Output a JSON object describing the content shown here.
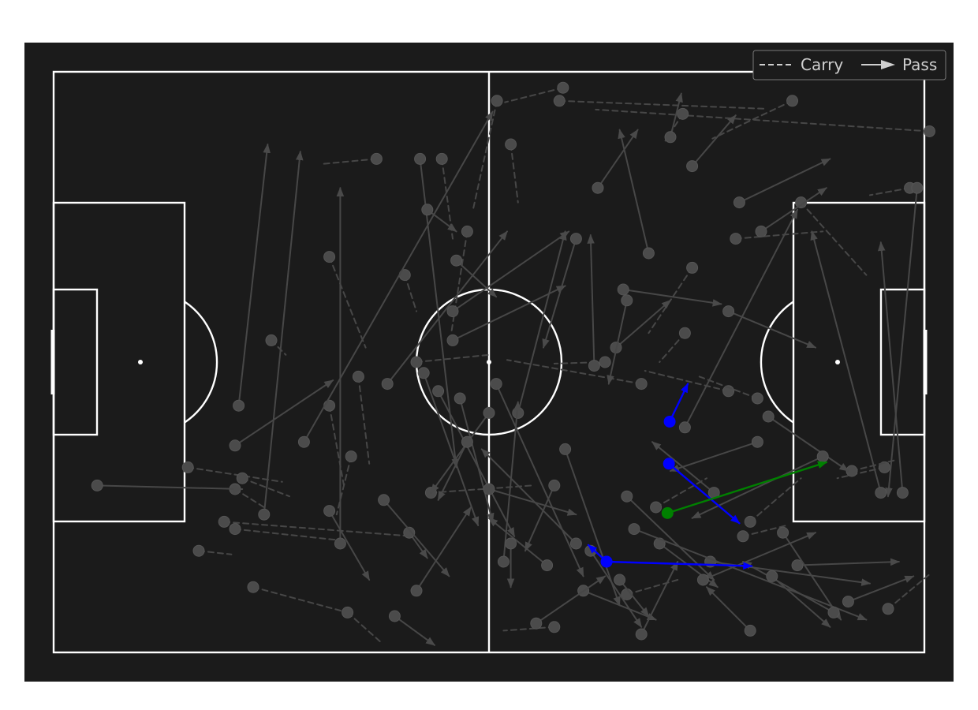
{
  "colors": {
    "background": "#1b1b1b",
    "lines": "#ffffff",
    "faded": "#9a9a9a",
    "highlight_pass": "#0000ff",
    "highlight_carry": "#008000",
    "legend_text": "#cfcfcf"
  },
  "legend": {
    "carry_label": "Carry",
    "pass_label": "Pass"
  },
  "chart_data": {
    "type": "scatter",
    "title": "",
    "xlabel": "",
    "ylabel": "",
    "pitch": {
      "length": 120,
      "width": 80
    },
    "xlim": [
      0,
      120
    ],
    "ylim": [
      0,
      80
    ],
    "grid": false,
    "legend_position": "top-right",
    "highlighted_events": [
      {
        "type": "pass",
        "x": 84.9,
        "y": 31.8,
        "end_x": 87.4,
        "end_y": 37.0
      },
      {
        "type": "pass",
        "x": 84.8,
        "y": 26.0,
        "end_x": 94.5,
        "end_y": 17.8
      },
      {
        "type": "pass",
        "x": 76.2,
        "y": 12.5,
        "end_x": 96.2,
        "end_y": 11.9
      },
      {
        "type": "pass",
        "x": 76.2,
        "y": 12.5,
        "end_x": 73.7,
        "end_y": 14.8
      },
      {
        "type": "carry",
        "x": 84.6,
        "y": 19.2,
        "end_x": 106.5,
        "end_y": 26.2
      }
    ],
    "background_events": [
      {
        "type": "carry",
        "x": 70.2,
        "y": 77.8,
        "end_x": 62.2,
        "end_y": 75.8
      },
      {
        "type": "carry",
        "x": 69.7,
        "y": 76.0,
        "end_x": 98.2,
        "end_y": 74.9
      },
      {
        "type": "carry",
        "x": 120.7,
        "y": 71.8,
        "end_x": 74.7,
        "end_y": 74.8
      },
      {
        "type": "carry",
        "x": 101.8,
        "y": 76.0,
        "end_x": 90.8,
        "end_y": 70.8
      },
      {
        "type": "carry",
        "x": 86.7,
        "y": 74.2,
        "end_x": 84.3,
        "end_y": 70.5
      },
      {
        "type": "carry",
        "x": 61.1,
        "y": 76.0,
        "end_x": 57.8,
        "end_y": 61.0
      },
      {
        "type": "carry",
        "x": 44.5,
        "y": 68.0,
        "end_x": 37.0,
        "end_y": 67.3
      },
      {
        "type": "carry",
        "x": 94.0,
        "y": 57.0,
        "end_x": 106.0,
        "end_y": 58.0
      },
      {
        "type": "carry",
        "x": 103.0,
        "y": 62.0,
        "end_x": 112.0,
        "end_y": 52.0
      },
      {
        "type": "carry",
        "x": 118.0,
        "y": 64.0,
        "end_x": 112.5,
        "end_y": 63.0
      },
      {
        "type": "carry",
        "x": 88.0,
        "y": 53.0,
        "end_x": 82.0,
        "end_y": 44.0
      },
      {
        "type": "carry",
        "x": 57.0,
        "y": 58.0,
        "end_x": 54.8,
        "end_y": 44.0
      },
      {
        "type": "carry",
        "x": 38.0,
        "y": 54.5,
        "end_x": 43.0,
        "end_y": 42.0
      },
      {
        "type": "carry",
        "x": 48.4,
        "y": 52.0,
        "end_x": 50.0,
        "end_y": 47.0
      },
      {
        "type": "carry",
        "x": 30.0,
        "y": 43.0,
        "end_x": 32.0,
        "end_y": 41.0
      },
      {
        "type": "carry",
        "x": 76.0,
        "y": 40.0,
        "end_x": 69.0,
        "end_y": 39.8
      },
      {
        "type": "carry",
        "x": 50.0,
        "y": 40.0,
        "end_x": 60.0,
        "end_y": 41.0
      },
      {
        "type": "carry",
        "x": 87.0,
        "y": 44.0,
        "end_x": 83.5,
        "end_y": 40.0
      },
      {
        "type": "carry",
        "x": 81.0,
        "y": 37.0,
        "end_x": 62.5,
        "end_y": 40.3
      },
      {
        "type": "carry",
        "x": 93.0,
        "y": 36.0,
        "end_x": 81.5,
        "end_y": 38.8
      },
      {
        "type": "carry",
        "x": 97.0,
        "y": 35.0,
        "end_x": 89.0,
        "end_y": 38.0
      },
      {
        "type": "carry",
        "x": 42.0,
        "y": 38.0,
        "end_x": 43.5,
        "end_y": 26.0
      },
      {
        "type": "carry",
        "x": 38.0,
        "y": 34.0,
        "end_x": 40.0,
        "end_y": 23.0
      },
      {
        "type": "carry",
        "x": 41.0,
        "y": 27.0,
        "end_x": 39.0,
        "end_y": 19.0
      },
      {
        "type": "carry",
        "x": 18.5,
        "y": 25.5,
        "end_x": 31.5,
        "end_y": 23.5
      },
      {
        "type": "carry",
        "x": 26.0,
        "y": 24.0,
        "end_x": 32.5,
        "end_y": 21.5
      },
      {
        "type": "carry",
        "x": 25.0,
        "y": 22.5,
        "end_x": 29.0,
        "end_y": 20.0
      },
      {
        "type": "carry",
        "x": 23.5,
        "y": 18.0,
        "end_x": 49.5,
        "end_y": 16.0
      },
      {
        "type": "carry",
        "x": 25.0,
        "y": 17.0,
        "end_x": 39.0,
        "end_y": 15.5
      },
      {
        "type": "carry",
        "x": 20.0,
        "y": 14.0,
        "end_x": 24.5,
        "end_y": 13.5
      },
      {
        "type": "carry",
        "x": 27.5,
        "y": 9.0,
        "end_x": 40.5,
        "end_y": 5.5
      },
      {
        "type": "carry",
        "x": 40.5,
        "y": 5.5,
        "end_x": 45.0,
        "end_y": 1.5
      },
      {
        "type": "carry",
        "x": 69.0,
        "y": 3.5,
        "end_x": 62.0,
        "end_y": 3.0
      },
      {
        "type": "carry",
        "x": 79.0,
        "y": 8.0,
        "end_x": 86.0,
        "end_y": 10.0
      },
      {
        "type": "carry",
        "x": 83.0,
        "y": 20.0,
        "end_x": 90.0,
        "end_y": 24.0
      },
      {
        "type": "carry",
        "x": 52.0,
        "y": 22.0,
        "end_x": 66.0,
        "end_y": 23.0
      },
      {
        "type": "carry",
        "x": 96.0,
        "y": 18.0,
        "end_x": 103.0,
        "end_y": 24.0
      },
      {
        "type": "carry",
        "x": 114.5,
        "y": 25.5,
        "end_x": 108.0,
        "end_y": 24.0
      },
      {
        "type": "carry",
        "x": 110.0,
        "y": 25.0,
        "end_x": 116.0,
        "end_y": 26.5
      },
      {
        "type": "carry",
        "x": 115.0,
        "y": 6.0,
        "end_x": 121.0,
        "end_y": 11.0
      },
      {
        "type": "carry",
        "x": 95.0,
        "y": 16.0,
        "end_x": 101.0,
        "end_y": 17.5
      },
      {
        "type": "carry",
        "x": 63.0,
        "y": 70.0,
        "end_x": 64.0,
        "end_y": 62.0
      },
      {
        "type": "carry",
        "x": 53.5,
        "y": 68.0,
        "end_x": 55.0,
        "end_y": 57.0
      },
      {
        "type": "pass",
        "x": 25.5,
        "y": 34.0,
        "end_x": 29.5,
        "end_y": 70.0
      },
      {
        "type": "pass",
        "x": 29.0,
        "y": 19.0,
        "end_x": 34.0,
        "end_y": 69.0
      },
      {
        "type": "pass",
        "x": 39.5,
        "y": 15.0,
        "end_x": 39.5,
        "end_y": 64.0
      },
      {
        "type": "pass",
        "x": 34.5,
        "y": 29.0,
        "end_x": 60.5,
        "end_y": 74.5
      },
      {
        "type": "pass",
        "x": 6.0,
        "y": 23.0,
        "end_x": 26.0,
        "end_y": 22.5
      },
      {
        "type": "pass",
        "x": 25.0,
        "y": 28.5,
        "end_x": 38.5,
        "end_y": 37.5
      },
      {
        "type": "pass",
        "x": 50.5,
        "y": 68.0,
        "end_x": 55.5,
        "end_y": 25.5
      },
      {
        "type": "pass",
        "x": 46.0,
        "y": 37.0,
        "end_x": 62.5,
        "end_y": 58.0
      },
      {
        "type": "pass",
        "x": 55.0,
        "y": 43.0,
        "end_x": 70.5,
        "end_y": 50.5
      },
      {
        "type": "pass",
        "x": 72.0,
        "y": 57.0,
        "end_x": 67.5,
        "end_y": 42.0
      },
      {
        "type": "pass",
        "x": 75.0,
        "y": 64.0,
        "end_x": 80.5,
        "end_y": 72.0
      },
      {
        "type": "pass",
        "x": 82.0,
        "y": 55.0,
        "end_x": 78.0,
        "end_y": 72.0
      },
      {
        "type": "pass",
        "x": 85.0,
        "y": 71.0,
        "end_x": 86.5,
        "end_y": 77.0
      },
      {
        "type": "pass",
        "x": 88.0,
        "y": 67.0,
        "end_x": 94.0,
        "end_y": 74.0
      },
      {
        "type": "pass",
        "x": 94.5,
        "y": 62.0,
        "end_x": 107.0,
        "end_y": 68.0
      },
      {
        "type": "pass",
        "x": 97.5,
        "y": 58.0,
        "end_x": 106.5,
        "end_y": 64.0
      },
      {
        "type": "pass",
        "x": 93.0,
        "y": 47.0,
        "end_x": 105.0,
        "end_y": 42.0
      },
      {
        "type": "pass",
        "x": 74.5,
        "y": 39.5,
        "end_x": 74.0,
        "end_y": 57.5
      },
      {
        "type": "pass",
        "x": 77.5,
        "y": 42.0,
        "end_x": 85.0,
        "end_y": 48.5
      },
      {
        "type": "pass",
        "x": 87.0,
        "y": 31.0,
        "end_x": 102.5,
        "end_y": 61.0
      },
      {
        "type": "pass",
        "x": 98.5,
        "y": 32.5,
        "end_x": 109.5,
        "end_y": 25.0
      },
      {
        "type": "pass",
        "x": 117.0,
        "y": 22.0,
        "end_x": 114.0,
        "end_y": 56.5
      },
      {
        "type": "pass",
        "x": 119.0,
        "y": 64.0,
        "end_x": 115.0,
        "end_y": 21.5
      },
      {
        "type": "pass",
        "x": 114.0,
        "y": 22.0,
        "end_x": 104.5,
        "end_y": 58.0
      },
      {
        "type": "pass",
        "x": 64.0,
        "y": 33.0,
        "end_x": 70.5,
        "end_y": 58.0
      },
      {
        "type": "pass",
        "x": 55.5,
        "y": 54.0,
        "end_x": 61.0,
        "end_y": 49.0
      },
      {
        "type": "pass",
        "x": 53.0,
        "y": 36.0,
        "end_x": 63.5,
        "end_y": 16.0
      },
      {
        "type": "pass",
        "x": 60.0,
        "y": 33.0,
        "end_x": 52.0,
        "end_y": 22.0
      },
      {
        "type": "pass",
        "x": 56.0,
        "y": 35.0,
        "end_x": 60.5,
        "end_y": 18.0
      },
      {
        "type": "pass",
        "x": 61.0,
        "y": 37.0,
        "end_x": 73.0,
        "end_y": 10.5
      },
      {
        "type": "pass",
        "x": 70.5,
        "y": 28.0,
        "end_x": 78.0,
        "end_y": 6.5
      },
      {
        "type": "pass",
        "x": 73.0,
        "y": 8.5,
        "end_x": 83.0,
        "end_y": 4.5
      },
      {
        "type": "pass",
        "x": 74.0,
        "y": 14.0,
        "end_x": 81.0,
        "end_y": 3.5
      },
      {
        "type": "pass",
        "x": 72.0,
        "y": 15.0,
        "end_x": 59.0,
        "end_y": 28.0
      },
      {
        "type": "pass",
        "x": 68.0,
        "y": 12.0,
        "end_x": 60.0,
        "end_y": 18.5
      },
      {
        "type": "pass",
        "x": 79.0,
        "y": 21.5,
        "end_x": 91.0,
        "end_y": 10.0
      },
      {
        "type": "pass",
        "x": 83.5,
        "y": 15.0,
        "end_x": 91.5,
        "end_y": 9.0
      },
      {
        "type": "pass",
        "x": 89.5,
        "y": 10.0,
        "end_x": 105.0,
        "end_y": 16.5
      },
      {
        "type": "pass",
        "x": 90.5,
        "y": 12.5,
        "end_x": 112.5,
        "end_y": 9.5
      },
      {
        "type": "pass",
        "x": 80.0,
        "y": 17.0,
        "end_x": 112.0,
        "end_y": 4.5
      },
      {
        "type": "pass",
        "x": 102.5,
        "y": 12.0,
        "end_x": 116.5,
        "end_y": 12.5
      },
      {
        "type": "pass",
        "x": 106.0,
        "y": 27.0,
        "end_x": 88.0,
        "end_y": 18.5
      },
      {
        "type": "pass",
        "x": 62.0,
        "y": 12.5,
        "end_x": 64.0,
        "end_y": 34.5
      },
      {
        "type": "pass",
        "x": 69.0,
        "y": 23.0,
        "end_x": 65.0,
        "end_y": 14.0
      },
      {
        "type": "pass",
        "x": 55.0,
        "y": 47.0,
        "end_x": 71.0,
        "end_y": 58.0
      },
      {
        "type": "pass",
        "x": 79.0,
        "y": 48.5,
        "end_x": 76.5,
        "end_y": 37.0
      },
      {
        "type": "pass",
        "x": 78.5,
        "y": 50.0,
        "end_x": 92.0,
        "end_y": 48.0
      },
      {
        "type": "pass",
        "x": 63.0,
        "y": 15.0,
        "end_x": 63.0,
        "end_y": 9.0
      },
      {
        "type": "pass",
        "x": 51.5,
        "y": 61.0,
        "end_x": 55.5,
        "end_y": 58.0
      },
      {
        "type": "pass",
        "x": 57.0,
        "y": 29.0,
        "end_x": 53.0,
        "end_y": 21.0
      },
      {
        "type": "pass",
        "x": 49.0,
        "y": 16.5,
        "end_x": 51.5,
        "end_y": 13.0
      },
      {
        "type": "pass",
        "x": 45.5,
        "y": 21.0,
        "end_x": 54.5,
        "end_y": 10.5
      },
      {
        "type": "pass",
        "x": 38.0,
        "y": 19.5,
        "end_x": 43.5,
        "end_y": 10.0
      },
      {
        "type": "pass",
        "x": 50.0,
        "y": 8.5,
        "end_x": 57.5,
        "end_y": 20.0
      },
      {
        "type": "pass",
        "x": 60.0,
        "y": 22.5,
        "end_x": 72.0,
        "end_y": 19.0
      },
      {
        "type": "pass",
        "x": 100.5,
        "y": 16.5,
        "end_x": 108.5,
        "end_y": 4.5
      },
      {
        "type": "pass",
        "x": 107.5,
        "y": 5.5,
        "end_x": 95.0,
        "end_y": 12.5
      },
      {
        "type": "pass",
        "x": 99.0,
        "y": 10.5,
        "end_x": 107.0,
        "end_y": 3.5
      },
      {
        "type": "pass",
        "x": 96.0,
        "y": 3.0,
        "end_x": 90.0,
        "end_y": 9.0
      },
      {
        "type": "pass",
        "x": 81.0,
        "y": 2.5,
        "end_x": 86.0,
        "end_y": 12.5
      },
      {
        "type": "pass",
        "x": 78.0,
        "y": 10.0,
        "end_x": 82.0,
        "end_y": 5.0
      },
      {
        "type": "pass",
        "x": 66.5,
        "y": 4.0,
        "end_x": 76.0,
        "end_y": 10.5
      },
      {
        "type": "pass",
        "x": 47.0,
        "y": 5.0,
        "end_x": 52.5,
        "end_y": 1.0
      },
      {
        "type": "pass",
        "x": 51.0,
        "y": 38.5,
        "end_x": 58.5,
        "end_y": 17.5
      },
      {
        "type": "pass",
        "x": 109.5,
        "y": 7.0,
        "end_x": 118.5,
        "end_y": 10.5
      },
      {
        "type": "pass",
        "x": 97.0,
        "y": 29.0,
        "end_x": 85.0,
        "end_y": 25.0
      },
      {
        "type": "pass",
        "x": 91.0,
        "y": 22.0,
        "end_x": 82.5,
        "end_y": 29.0
      }
    ]
  }
}
